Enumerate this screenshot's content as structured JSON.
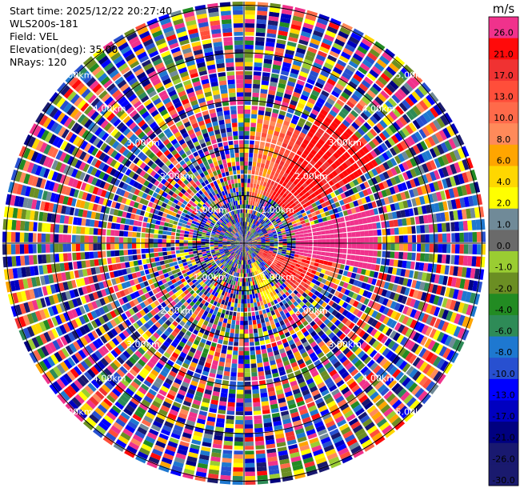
{
  "info": {
    "start_time": "Start time: 2025/12/22 20:27:40",
    "instrument": "WLS200s-181",
    "field": "Field: VEL",
    "elevation": "Elevation(deg): 35.00",
    "nrays": "NRays: 120"
  },
  "chart_data": {
    "type": "heatmap",
    "projection": "polar PPI",
    "field": "VEL",
    "nrays": 120,
    "range_rings_km": [
      1.0,
      2.0,
      3.0,
      4.0,
      5.0
    ],
    "ring_labels": [
      "1.00km",
      "2.00km",
      "3.00km",
      "4.00km",
      "5.00km"
    ],
    "colorbar": {
      "unit": "m/s",
      "levels": [
        {
          "label": "26.0",
          "color": "#f0328c"
        },
        {
          "label": "21.0",
          "color": "#ff0a0a"
        },
        {
          "label": "17.0",
          "color": "#f03232"
        },
        {
          "label": "13.0",
          "color": "#ff4e3a"
        },
        {
          "label": "10.0",
          "color": "#ff6a4a"
        },
        {
          "label": "8.0",
          "color": "#ff8a5a"
        },
        {
          "label": "6.0",
          "color": "#ffa500"
        },
        {
          "label": "4.0",
          "color": "#ffd700"
        },
        {
          "label": "2.0",
          "color": "#ffff00"
        },
        {
          "label": "1.0",
          "color": "#708a98"
        },
        {
          "label": "0.0",
          "color": "#6a6a6a"
        },
        {
          "label": "-1.0",
          "color": "#9acd32"
        },
        {
          "label": "-2.0",
          "color": "#6b8e23"
        },
        {
          "label": "-4.0",
          "color": "#228b22"
        },
        {
          "label": "-6.0",
          "color": "#2e8b57"
        },
        {
          "label": "-8.0",
          "color": "#1e78d0"
        },
        {
          "label": "-10.0",
          "color": "#2850d0"
        },
        {
          "label": "-13.0",
          "color": "#0000ff"
        },
        {
          "label": "-17.0",
          "color": "#0000c0"
        },
        {
          "label": "-21.0",
          "color": "#000080"
        },
        {
          "label": "-26.0",
          "color": "#191970"
        },
        {
          "label": "-30.0",
          "color": "#1a1a6e"
        }
      ]
    }
  }
}
